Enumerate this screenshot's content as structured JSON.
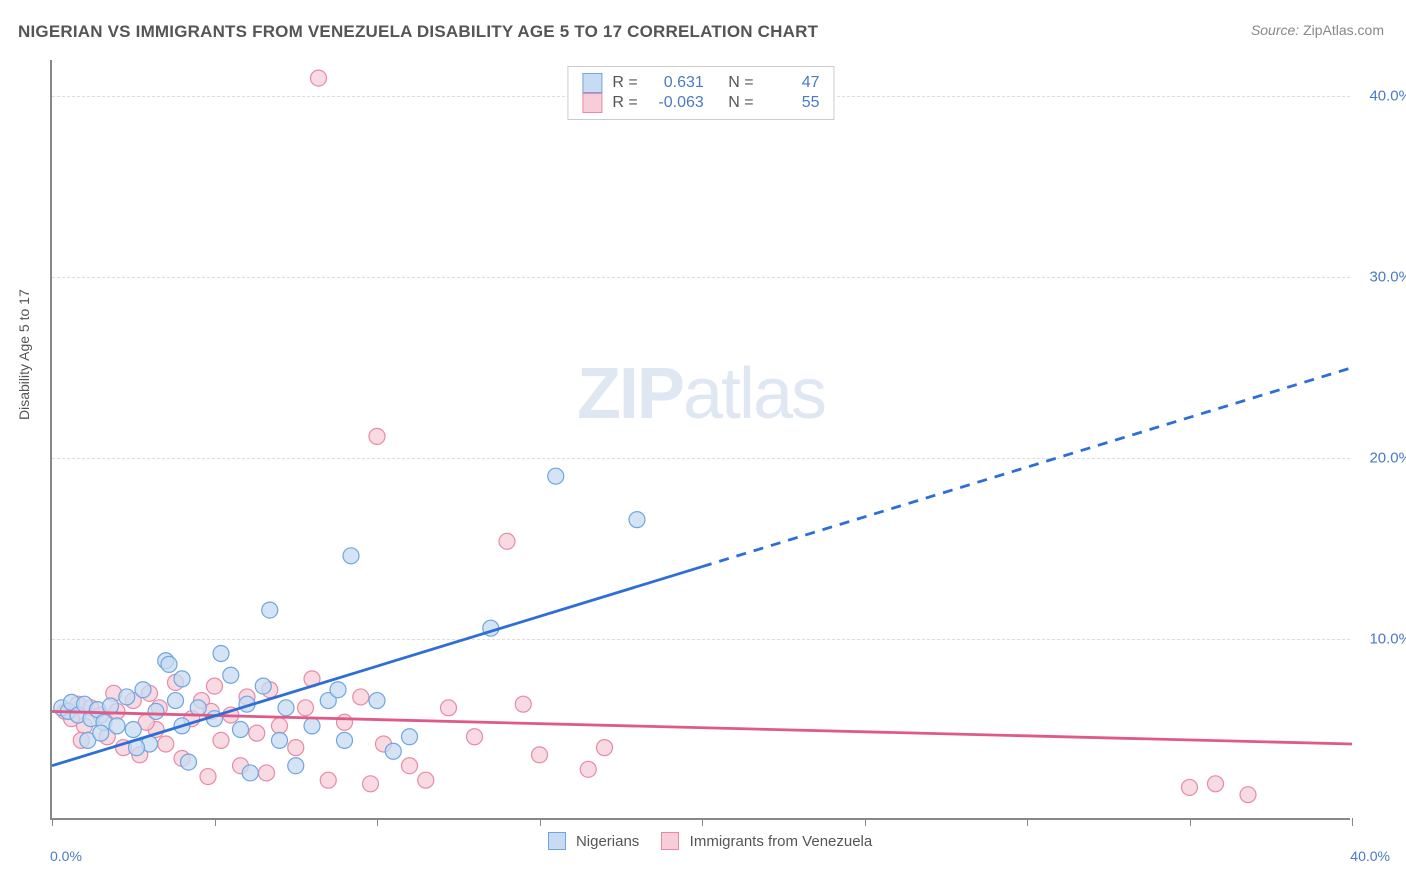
{
  "title": "NIGERIAN VS IMMIGRANTS FROM VENEZUELA DISABILITY AGE 5 TO 17 CORRELATION CHART",
  "source_label": "Source:",
  "source_value": "ZipAtlas.com",
  "y_axis_label": "Disability Age 5 to 17",
  "x_tick_left": "0.0%",
  "x_tick_right": "40.0%",
  "watermark_bold": "ZIP",
  "watermark_rest": "atlas",
  "chart": {
    "type": "scatter",
    "xlim": [
      0,
      40
    ],
    "ylim": [
      0,
      42
    ],
    "y_ticks": [
      10,
      20,
      30,
      40
    ],
    "y_tick_labels": [
      "10.0%",
      "20.0%",
      "30.0%",
      "40.0%"
    ],
    "x_ticks": [
      0,
      5,
      10,
      15,
      20,
      25,
      30,
      35,
      40
    ],
    "grid_color": "#dddddd",
    "axis_color": "#888888",
    "background_color": "#ffffff",
    "marker_radius": 8,
    "marker_stroke_width": 1.2,
    "line_width": 2.8,
    "label_fontsize": 14,
    "tick_fontsize": 15,
    "tick_font_color": "#4a7ac6"
  },
  "series": {
    "nigerians": {
      "label": "Nigerians",
      "fill": "#c7dbf2",
      "stroke": "#6fa6e0",
      "line_color": "#2d6fd6",
      "r_label": "R =",
      "r_value": "0.631",
      "n_label": "N =",
      "n_value": "47",
      "regression": {
        "x1": 0,
        "y1": 3.0,
        "x2": 20,
        "y2": 14.0,
        "x3": 40,
        "y3": 25.0
      },
      "points": [
        [
          0.3,
          6.2
        ],
        [
          0.5,
          6.0
        ],
        [
          0.6,
          6.5
        ],
        [
          0.8,
          5.8
        ],
        [
          1.0,
          6.4
        ],
        [
          1.2,
          5.6
        ],
        [
          1.4,
          6.1
        ],
        [
          1.6,
          5.4
        ],
        [
          1.8,
          6.3
        ],
        [
          2.0,
          5.2
        ],
        [
          2.3,
          6.8
        ],
        [
          2.5,
          5.0
        ],
        [
          2.8,
          7.2
        ],
        [
          1.1,
          4.4
        ],
        [
          3.0,
          4.2
        ],
        [
          3.2,
          6.0
        ],
        [
          3.5,
          8.8
        ],
        [
          3.6,
          8.6
        ],
        [
          3.8,
          6.6
        ],
        [
          4.0,
          5.2
        ],
        [
          4.0,
          7.8
        ],
        [
          4.2,
          3.2
        ],
        [
          4.5,
          6.2
        ],
        [
          2.6,
          4.0
        ],
        [
          5.0,
          5.6
        ],
        [
          5.2,
          9.2
        ],
        [
          5.5,
          8.0
        ],
        [
          5.8,
          5.0
        ],
        [
          6.0,
          6.4
        ],
        [
          6.1,
          2.6
        ],
        [
          6.5,
          7.4
        ],
        [
          6.7,
          11.6
        ],
        [
          7.0,
          4.4
        ],
        [
          7.2,
          6.2
        ],
        [
          7.5,
          3.0
        ],
        [
          8.0,
          5.2
        ],
        [
          8.5,
          6.6
        ],
        [
          9.0,
          4.4
        ],
        [
          9.2,
          14.6
        ],
        [
          10.0,
          6.6
        ],
        [
          10.5,
          3.8
        ],
        [
          11.0,
          4.6
        ],
        [
          13.5,
          10.6
        ],
        [
          15.5,
          19.0
        ],
        [
          18.0,
          16.6
        ],
        [
          8.8,
          7.2
        ],
        [
          1.5,
          4.8
        ]
      ]
    },
    "venezuela": {
      "label": "Immigrants from Venezuela",
      "fill": "#f6cdd9",
      "stroke": "#e88aa6",
      "line_color": "#e05a88",
      "r_label": "R =",
      "r_value": "-0.063",
      "n_label": "N =",
      "n_value": "55",
      "regression": {
        "x1": 0,
        "y1": 6.0,
        "x2": 40,
        "y2": 4.2
      },
      "points": [
        [
          0.4,
          6.0
        ],
        [
          0.6,
          5.6
        ],
        [
          0.8,
          6.4
        ],
        [
          1.0,
          5.2
        ],
        [
          1.2,
          6.2
        ],
        [
          1.5,
          5.8
        ],
        [
          1.7,
          4.6
        ],
        [
          2.0,
          6.0
        ],
        [
          2.2,
          4.0
        ],
        [
          2.5,
          6.6
        ],
        [
          2.7,
          3.6
        ],
        [
          3.0,
          7.0
        ],
        [
          3.2,
          5.0
        ],
        [
          3.5,
          4.2
        ],
        [
          3.8,
          7.6
        ],
        [
          4.0,
          3.4
        ],
        [
          4.3,
          5.6
        ],
        [
          4.6,
          6.6
        ],
        [
          4.8,
          2.4
        ],
        [
          5.0,
          7.4
        ],
        [
          5.2,
          4.4
        ],
        [
          5.5,
          5.8
        ],
        [
          5.8,
          3.0
        ],
        [
          6.0,
          6.8
        ],
        [
          6.3,
          4.8
        ],
        [
          6.6,
          2.6
        ],
        [
          6.7,
          7.2
        ],
        [
          7.0,
          5.2
        ],
        [
          7.5,
          4.0
        ],
        [
          7.8,
          6.2
        ],
        [
          8.0,
          7.8
        ],
        [
          8.2,
          41.0
        ],
        [
          8.5,
          2.2
        ],
        [
          9.0,
          5.4
        ],
        [
          9.5,
          6.8
        ],
        [
          9.8,
          2.0
        ],
        [
          10.0,
          21.2
        ],
        [
          10.2,
          4.2
        ],
        [
          11.0,
          3.0
        ],
        [
          11.5,
          2.2
        ],
        [
          12.2,
          6.2
        ],
        [
          13.0,
          4.6
        ],
        [
          14.0,
          15.4
        ],
        [
          14.5,
          6.4
        ],
        [
          15.0,
          3.6
        ],
        [
          16.5,
          2.8
        ],
        [
          17.0,
          4.0
        ],
        [
          35.0,
          1.8
        ],
        [
          35.8,
          2.0
        ],
        [
          36.8,
          1.4
        ],
        [
          2.9,
          5.4
        ],
        [
          1.9,
          7.0
        ],
        [
          0.9,
          4.4
        ],
        [
          3.3,
          6.2
        ],
        [
          4.9,
          6.0
        ]
      ]
    }
  }
}
